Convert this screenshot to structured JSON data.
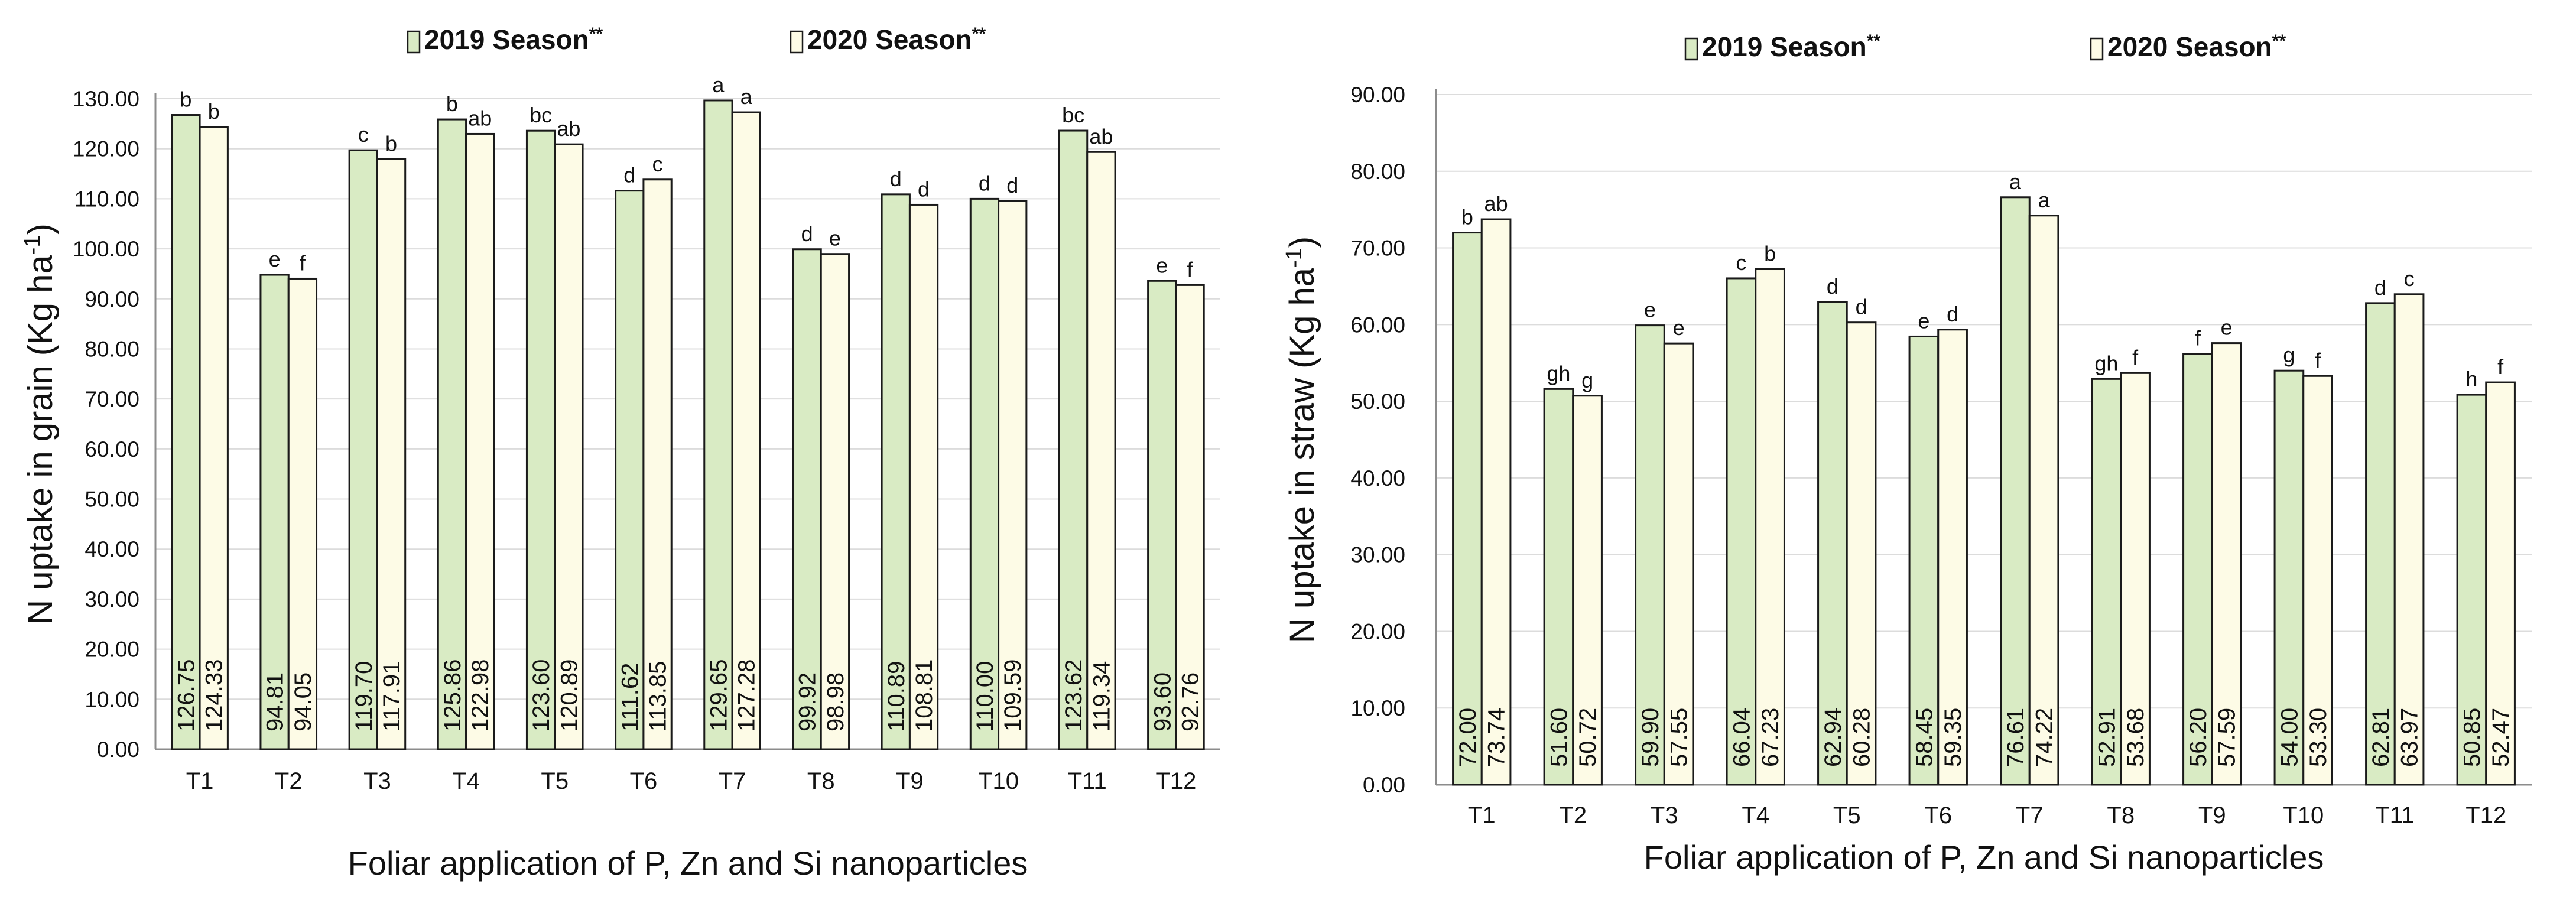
{
  "chart_data": [
    {
      "type": "bar",
      "title": "",
      "xlabel": "Foliar application of P, Zn and Si nanoparticles",
      "ylabel": "N uptake in grain (Kg ha-1)",
      "ylabel_main": "N uptake in grain (Kg ha",
      "ylabel_sup": "-1",
      "ylabel_close": ")",
      "ylim": [
        0,
        130
      ],
      "yticks": [
        "0.00",
        "10.00",
        "20.00",
        "30.00",
        "40.00",
        "50.00",
        "60.00",
        "70.00",
        "80.00",
        "90.00",
        "100.00",
        "110.00",
        "120.00",
        "130.00"
      ],
      "grid": true,
      "legend_position": "top",
      "categories": [
        "T1",
        "T2",
        "T3",
        "T4",
        "T5",
        "T6",
        "T7",
        "T8",
        "T9",
        "T10",
        "T11",
        "T12"
      ],
      "series": [
        {
          "name": "2019 Season",
          "legend_label": "2019 Season",
          "legend_mark": "**",
          "color": "#d9ebc4",
          "values": [
            126.75,
            94.81,
            119.7,
            125.86,
            123.6,
            111.62,
            129.65,
            99.92,
            110.89,
            110.0,
            123.62,
            93.6
          ],
          "labels": [
            "126.75",
            "94.81",
            "119.70",
            "125.86",
            "123.60",
            "111.62",
            "129.65",
            "99.92",
            "110.89",
            "110.00",
            "123.62",
            "93.60"
          ],
          "letters": [
            "b",
            "e",
            "c",
            "b",
            "bc",
            "d",
            "a",
            "d",
            "d",
            "d",
            "bc",
            "e"
          ]
        },
        {
          "name": "2020 Season",
          "legend_label": "2020 Season",
          "legend_mark": "**",
          "color": "#fdfbe6",
          "values": [
            124.33,
            94.05,
            117.91,
            122.98,
            120.89,
            113.85,
            127.28,
            98.98,
            108.81,
            109.59,
            119.34,
            92.76
          ],
          "labels": [
            "124.33",
            "94.05",
            "117.91",
            "122.98",
            "120.89",
            "113.85",
            "127.28",
            "98.98",
            "108.81",
            "109.59",
            "119.34",
            "92.76"
          ],
          "letters": [
            "b",
            "f",
            "b",
            "ab",
            "ab",
            "c",
            "a",
            "e",
            "d",
            "d",
            "ab",
            "f"
          ]
        }
      ]
    },
    {
      "type": "bar",
      "title": "",
      "xlabel": "Foliar application of P, Zn and Si nanoparticles",
      "ylabel": "N uptake in straw (Kg ha-1)",
      "ylabel_main": "N uptake in straw (Kg ha",
      "ylabel_sup": "-1",
      "ylabel_close": ")",
      "ylim": [
        0,
        90
      ],
      "yticks": [
        "0.00",
        "10.00",
        "20.00",
        "30.00",
        "40.00",
        "50.00",
        "60.00",
        "70.00",
        "80.00",
        "90.00"
      ],
      "grid": true,
      "legend_position": "top",
      "categories": [
        "T1",
        "T2",
        "T3",
        "T4",
        "T5",
        "T6",
        "T7",
        "T8",
        "T9",
        "T10",
        "T11",
        "T12"
      ],
      "series": [
        {
          "name": "2019 Season",
          "legend_label": "2019 Season",
          "legend_mark": "**",
          "color": "#d9ebc4",
          "values": [
            72.0,
            51.6,
            59.9,
            66.04,
            62.94,
            58.45,
            76.61,
            52.91,
            56.2,
            54.0,
            62.81,
            50.85
          ],
          "labels": [
            "72.00",
            "51.60",
            "59.90",
            "66.04",
            "62.94",
            "58.45",
            "76.61",
            "52.91",
            "56.20",
            "54.00",
            "62.81",
            "50.85"
          ],
          "letters": [
            "b",
            "gh",
            "e",
            "c",
            "d",
            "e",
            "a",
            "gh",
            "f",
            "g",
            "d",
            "h"
          ]
        },
        {
          "name": "2020 Season",
          "legend_label": "2020 Season",
          "legend_mark": "**",
          "color": "#fdfbe6",
          "values": [
            73.74,
            50.72,
            57.55,
            67.23,
            60.28,
            59.35,
            74.22,
            53.68,
            57.59,
            53.3,
            63.97,
            52.47
          ],
          "labels": [
            "73.74",
            "50.72",
            "57.55",
            "67.23",
            "60.28",
            "59.35",
            "74.22",
            "53.68",
            "57.59",
            "53.30",
            "63.97",
            "52.47"
          ],
          "letters": [
            "ab",
            "g",
            "e",
            "b",
            "d",
            "d",
            "a",
            "f",
            "e",
            "f",
            "c",
            "f"
          ]
        }
      ]
    }
  ]
}
